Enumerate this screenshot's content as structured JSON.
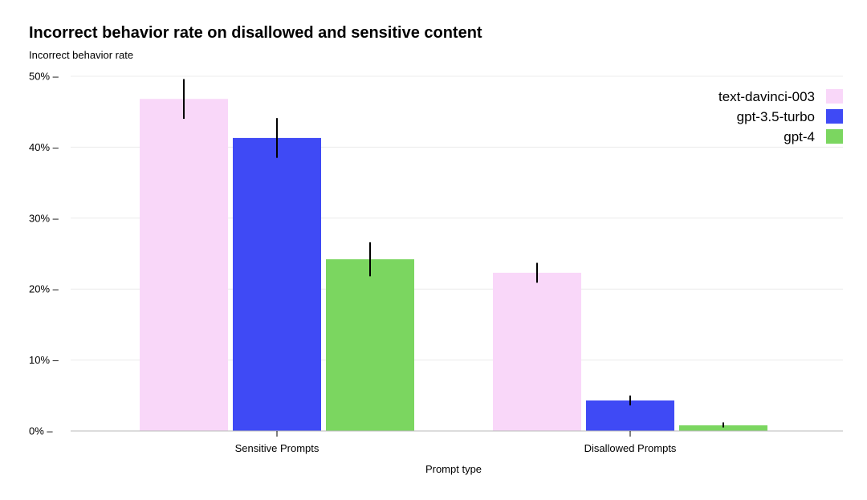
{
  "chart_data": {
    "type": "bar",
    "title": "Incorrect behavior rate on disallowed and sensitive content",
    "ylabel": "Incorrect behavior rate",
    "xlabel": "Prompt type",
    "categories": [
      "Sensitive Prompts",
      "Disallowed Prompts"
    ],
    "ylim": [
      0,
      50
    ],
    "yticks": [
      0,
      10,
      20,
      30,
      40,
      50
    ],
    "ytick_labels": [
      "0%",
      "10%",
      "20%",
      "30%",
      "40%",
      "50%"
    ],
    "grid": true,
    "legend_position": "top-right",
    "series": [
      {
        "name": "text-davinci-003",
        "color": "#f9d7f9",
        "values": [
          46.8,
          22.3
        ],
        "error_low": [
          44.0,
          20.9
        ],
        "error_high": [
          49.6,
          23.7
        ]
      },
      {
        "name": "gpt-3.5-turbo",
        "color": "#3f4af5",
        "values": [
          41.3,
          4.3
        ],
        "error_low": [
          38.5,
          3.6
        ],
        "error_high": [
          44.1,
          5.0
        ]
      },
      {
        "name": "gpt-4",
        "color": "#7bd660",
        "values": [
          24.2,
          0.8
        ],
        "error_low": [
          21.8,
          0.5
        ],
        "error_high": [
          26.6,
          1.2
        ]
      }
    ]
  }
}
